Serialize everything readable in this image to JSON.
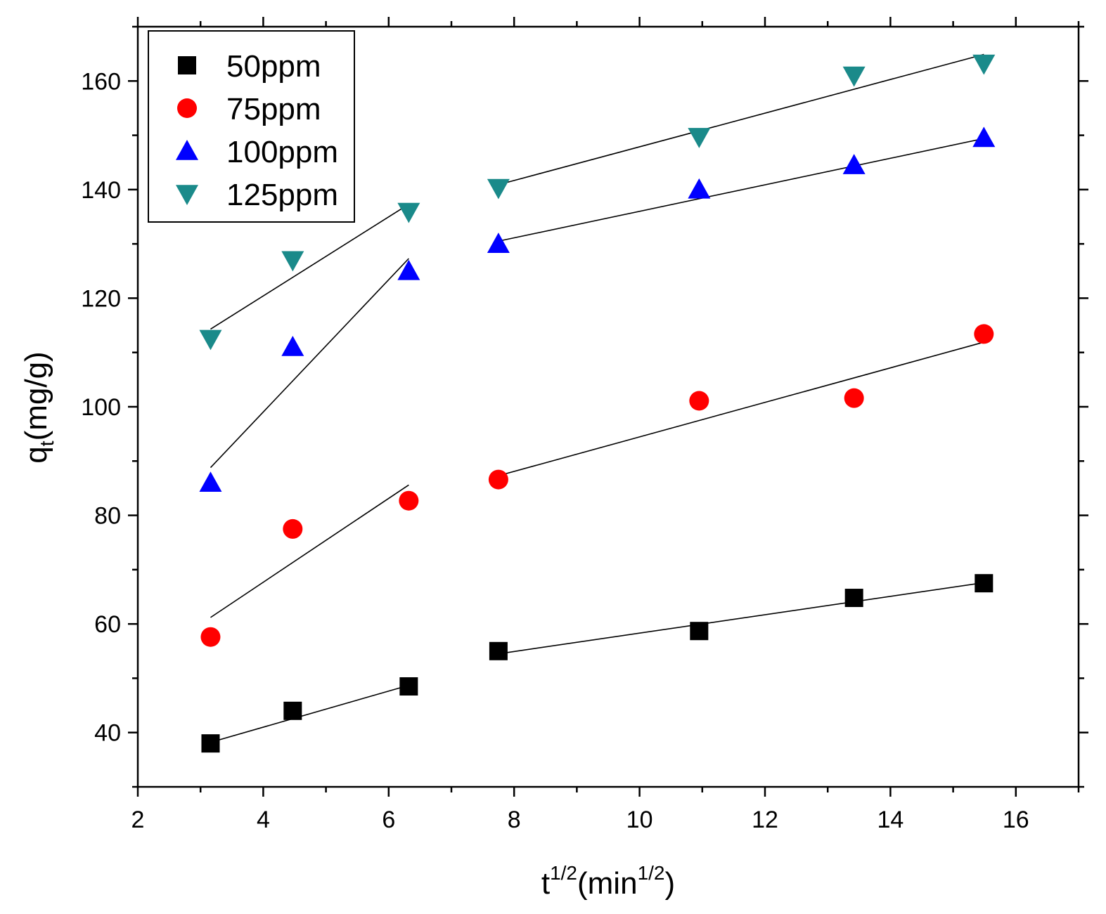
{
  "chart_data": {
    "type": "scatter",
    "title": "",
    "xlabel": {
      "base": "t",
      "sup": "1/2",
      "unit_open": "(min",
      "unit_sup": "1/2",
      "unit_close": ")"
    },
    "ylabel": {
      "base": "q",
      "sub": "t",
      "unit": "(mg/g)"
    },
    "xlim": [
      2,
      17
    ],
    "ylim": [
      30,
      170
    ],
    "x_ticks": [
      2,
      4,
      6,
      8,
      10,
      12,
      14,
      16
    ],
    "x_tick_labels": [
      "2",
      "4",
      "6",
      "8",
      "10",
      "12",
      "14",
      "16"
    ],
    "y_ticks": [
      40,
      60,
      80,
      100,
      120,
      140,
      160
    ],
    "y_tick_labels": [
      "40",
      "60",
      "80",
      "100",
      "120",
      "140",
      "160"
    ],
    "grid": false,
    "legend_position": "top-left",
    "series": [
      {
        "name": "50ppm",
        "marker": "square",
        "color": "#000000",
        "x": [
          3.16,
          4.47,
          6.32,
          7.75,
          10.95,
          13.42,
          15.49
        ],
        "y": [
          38.0,
          44.0,
          48.5,
          55.0,
          58.7,
          64.8,
          67.5
        ],
        "fits": [
          {
            "x": [
              3.16,
              6.32
            ],
            "y": [
              38.2,
              48.7
            ]
          },
          {
            "x": [
              7.75,
              15.49
            ],
            "y": [
              54.5,
              67.6
            ]
          }
        ]
      },
      {
        "name": "75ppm",
        "marker": "circle",
        "color": "#ff0000",
        "x": [
          3.16,
          4.47,
          6.32,
          7.75,
          10.95,
          13.42,
          15.49
        ],
        "y": [
          57.6,
          77.5,
          82.7,
          86.6,
          101.1,
          101.6,
          113.4
        ],
        "fits": [
          {
            "x": [
              3.16,
              6.32
            ],
            "y": [
              61.2,
              85.6
            ]
          },
          {
            "x": [
              7.75,
              15.49
            ],
            "y": [
              87.3,
              111.9
            ]
          }
        ]
      },
      {
        "name": "100ppm",
        "marker": "triangle-up",
        "color": "#0000ff",
        "x": [
          3.16,
          4.47,
          6.32,
          7.75,
          10.95,
          13.42,
          15.49
        ],
        "y": [
          86.0,
          111.0,
          125.0,
          130.0,
          140.0,
          144.5,
          149.5
        ],
        "fits": [
          {
            "x": [
              3.16,
              6.32
            ],
            "y": [
              88.8,
              127.3
            ]
          },
          {
            "x": [
              7.75,
              15.49
            ],
            "y": [
              130.5,
              149.4
            ]
          }
        ]
      },
      {
        "name": "125ppm",
        "marker": "triangle-down",
        "color": "#1a8a8a",
        "x": [
          3.16,
          4.47,
          6.32,
          7.75,
          10.95,
          13.42,
          15.49
        ],
        "y": [
          112.5,
          127.0,
          135.9,
          140.3,
          149.7,
          161.0,
          163.2
        ],
        "fits": [
          {
            "x": [
              3.16,
              6.32
            ],
            "y": [
              114.3,
              137.3
            ]
          },
          {
            "x": [
              7.75,
              15.49
            ],
            "y": [
              140.9,
              164.9
            ]
          }
        ]
      }
    ]
  }
}
